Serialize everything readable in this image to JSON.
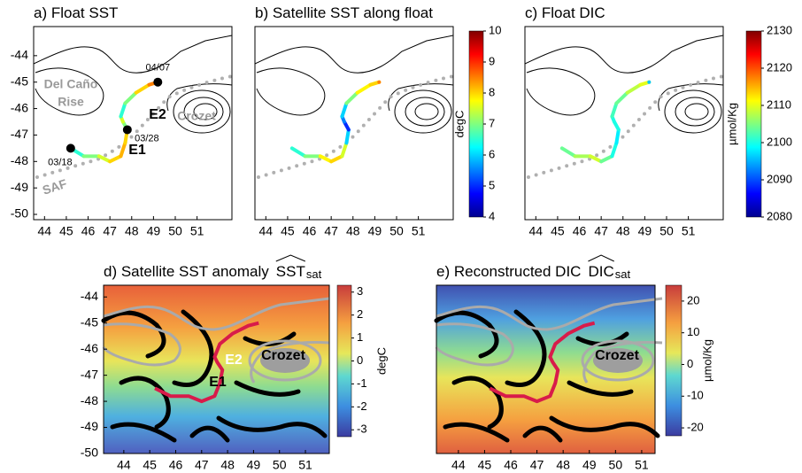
{
  "chart_data": [
    {
      "type": "track",
      "title": "a) Float SST",
      "xlim": [
        43.5,
        52.6
      ],
      "ylim": [
        -50.2,
        -42.9
      ],
      "xticks": [
        44,
        45,
        46,
        47,
        48,
        49,
        50,
        51
      ],
      "yticks": [
        -44,
        -45,
        -46,
        -47,
        -48,
        -49,
        -50
      ],
      "x": [
        45.2,
        45.8,
        46.5,
        47.0,
        47.5,
        47.7,
        47.8,
        47.6,
        47.5,
        47.7,
        48.2,
        48.8,
        49.2
      ],
      "y": [
        -47.5,
        -47.8,
        -47.8,
        -48.0,
        -47.8,
        -47.3,
        -46.8,
        -46.5,
        -46.3,
        -45.8,
        -45.4,
        -45.1,
        -45.0
      ],
      "values": [
        6.5,
        7,
        7.5,
        8,
        8.2,
        8,
        7,
        7.5,
        6.5,
        7,
        8,
        8.5,
        8
      ],
      "clim": [
        4,
        10
      ],
      "markers": [
        {
          "x": 45.2,
          "y": -47.5,
          "label": "03/18"
        },
        {
          "x": 47.8,
          "y": -46.8,
          "label": "03/28"
        },
        {
          "x": 49.2,
          "y": -45.0,
          "label": "04/07"
        }
      ],
      "annotations": [
        "Del Caño",
        "Rise",
        "E2",
        "Crozet",
        "E1",
        "SAF"
      ]
    },
    {
      "type": "track",
      "title": "b) Satellite SST along float",
      "xlim": [
        43.5,
        52.6
      ],
      "ylim": [
        -50.2,
        -42.9
      ],
      "xticks": [
        44,
        45,
        46,
        47,
        48,
        49,
        50,
        51
      ],
      "x": [
        45.2,
        45.8,
        46.5,
        47.0,
        47.5,
        47.7,
        47.8,
        47.6,
        47.5,
        47.7,
        48.2,
        48.8,
        49.2
      ],
      "y": [
        -47.5,
        -47.8,
        -47.8,
        -48.0,
        -47.8,
        -47.3,
        -46.8,
        -46.5,
        -46.3,
        -45.8,
        -45.4,
        -45.1,
        -45.0
      ],
      "values": [
        6.5,
        7,
        7.8,
        8,
        7.5,
        6,
        5,
        5.5,
        6,
        7,
        7.8,
        8,
        8.5
      ],
      "clim": [
        4,
        10
      ],
      "cticks": [
        4,
        5,
        6,
        7,
        8,
        9,
        10
      ],
      "clabel": "degC"
    },
    {
      "type": "track",
      "title": "c) Float DIC",
      "xlim": [
        43.5,
        52.6
      ],
      "ylim": [
        -50.2,
        -42.9
      ],
      "xticks": [
        44,
        45,
        46,
        47,
        48,
        49,
        50,
        51
      ],
      "x": [
        45.2,
        45.8,
        46.5,
        47.0,
        47.5,
        47.7,
        47.8,
        47.6,
        47.5,
        47.7,
        48.2,
        48.8,
        49.2
      ],
      "y": [
        -47.5,
        -47.8,
        -47.8,
        -48.0,
        -47.8,
        -47.3,
        -46.8,
        -46.5,
        -46.3,
        -45.8,
        -45.4,
        -45.1,
        -45.0
      ],
      "values": [
        2104,
        2107,
        2109,
        2104,
        2100,
        2098,
        2100,
        2100,
        2102,
        2104,
        2108,
        2110,
        2096
      ],
      "clim": [
        2080,
        2130
      ],
      "cticks": [
        2080,
        2090,
        2100,
        2110,
        2120,
        2130
      ],
      "clabel": "µmol/Kg"
    },
    {
      "type": "field",
      "title": "d) Satellite SST anomaly",
      "title_math": "SST",
      "title_sub": "sat",
      "xlim": [
        43.22,
        51.92
      ],
      "ylim": [
        -50,
        -43.55
      ],
      "xticks": [
        44,
        45,
        46,
        47,
        48,
        49,
        50,
        51
      ],
      "yticks": [
        -44,
        -45,
        -46,
        -47,
        -48,
        -49,
        -50
      ],
      "x": [
        45.2,
        45.8,
        46.5,
        47.0,
        47.5,
        47.7,
        47.8,
        47.6,
        47.5,
        47.7,
        48.2,
        48.8,
        49.2
      ],
      "y": [
        -47.5,
        -47.8,
        -47.8,
        -48.0,
        -47.8,
        -47.3,
        -46.8,
        -46.5,
        -46.3,
        -45.8,
        -45.4,
        -45.1,
        -45.0
      ],
      "color": "#d81b4a",
      "clim": [
        -3.3,
        3.3
      ],
      "cticks": [
        3,
        2,
        1,
        0,
        -1,
        -2,
        -3
      ],
      "clabel": "degC",
      "annotations": [
        "E2",
        "Crozet",
        "E1"
      ]
    },
    {
      "type": "field",
      "title": "e) Reconstructed DIC",
      "title_math": "DIC",
      "title_sub": "sat",
      "xlim": [
        43.16,
        51.51
      ],
      "ylim": [
        -50,
        -43.55
      ],
      "xticks": [
        44,
        45,
        46,
        47,
        48,
        49,
        50,
        51
      ],
      "x": [
        45.2,
        45.8,
        46.5,
        47.0,
        47.5,
        47.7,
        47.8,
        47.6,
        47.5,
        47.7,
        48.2,
        48.8,
        49.2
      ],
      "y": [
        -47.5,
        -47.8,
        -47.8,
        -48.0,
        -47.8,
        -47.3,
        -46.8,
        -46.5,
        -46.3,
        -45.8,
        -45.4,
        -45.1,
        -45.0
      ],
      "color": "#d81b4a",
      "clim": [
        -22.5,
        25
      ],
      "cticks": [
        20,
        10,
        0,
        -10,
        -20
      ],
      "clabel": "µmol/Kg",
      "annotations": [
        "Crozet"
      ]
    }
  ]
}
